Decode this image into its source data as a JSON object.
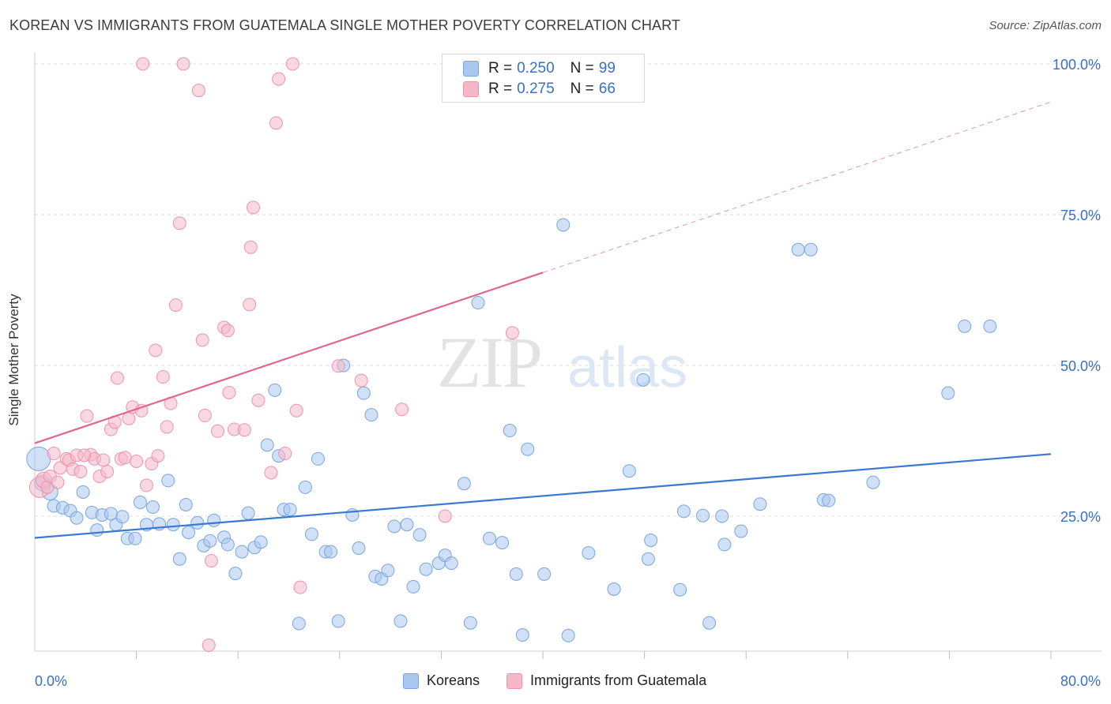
{
  "header": {
    "title": "KOREAN VS IMMIGRANTS FROM GUATEMALA SINGLE MOTHER POVERTY CORRELATION CHART",
    "source": "Source: ZipAtlas.com"
  },
  "watermark": {
    "part1": "ZIP",
    "part2": "atlas"
  },
  "legend": {
    "koreans": {
      "r_label": "R =",
      "r_value": "0.250",
      "n_label": "N =",
      "n_value": "99"
    },
    "guatemala": {
      "r_label": "R =",
      "r_value": "0.275",
      "n_label": "N =",
      "n_value": "66"
    }
  },
  "bottom_legend": {
    "koreans": "Koreans",
    "guatemala": "Immigrants from Guatemala"
  },
  "colors": {
    "blue_fill": "#a9c6ee",
    "blue_stroke": "#7aa5df",
    "blue_line": "#3a78d1",
    "pink_fill": "#f5b8c9",
    "pink_stroke": "#ee93ae",
    "pink_line": "#e0668f",
    "tick_label": "#3a6fc4",
    "grid": "#dddddd"
  },
  "chart_data": {
    "type": "scatter",
    "title": "KOREAN VS IMMIGRANTS FROM GUATEMALA SINGLE MOTHER POVERTY CORRELATION CHART",
    "xlabel": "",
    "ylabel": "Single Mother Poverty",
    "xlim": [
      0,
      80
    ],
    "ylim": [
      0,
      100
    ],
    "x_tick_labels": [
      "0.0%",
      "80.0%"
    ],
    "y_tick_labels": [
      "25.0%",
      "50.0%",
      "75.0%",
      "100.0%"
    ],
    "y_ticks": [
      25,
      50,
      75,
      100
    ],
    "grid": true,
    "legend_position": "top-center",
    "series": [
      {
        "name": "Koreans",
        "color": "#a9c6ee",
        "r": 0.25,
        "n": 99,
        "trend": {
          "x": [
            0,
            80
          ],
          "y": [
            21.4,
            35.3
          ],
          "style": "solid"
        },
        "points": [
          [
            0.3,
            34.5,
            14
          ],
          [
            1.2,
            29.0,
            9
          ],
          [
            1.5,
            26.7,
            7
          ],
          [
            2.2,
            26.4,
            7
          ],
          [
            2.8,
            25.9,
            7
          ],
          [
            3.3,
            24.7,
            7
          ],
          [
            3.8,
            29.0,
            7
          ],
          [
            4.5,
            25.6,
            7
          ],
          [
            4.9,
            22.7,
            7
          ],
          [
            5.3,
            25.2,
            7
          ],
          [
            6.0,
            25.4,
            7
          ],
          [
            6.4,
            23.6,
            7
          ],
          [
            6.9,
            24.9,
            7
          ],
          [
            7.3,
            21.3,
            7
          ],
          [
            7.9,
            21.3,
            7
          ],
          [
            8.3,
            27.3,
            7
          ],
          [
            8.8,
            23.6,
            7
          ],
          [
            9.3,
            26.5,
            7
          ],
          [
            9.8,
            23.7,
            7
          ],
          [
            10.5,
            30.9,
            7
          ],
          [
            10.9,
            23.6,
            7
          ],
          [
            11.4,
            17.9,
            7
          ],
          [
            11.9,
            26.9,
            7
          ],
          [
            12.1,
            22.3,
            7
          ],
          [
            12.8,
            23.9,
            7
          ],
          [
            13.3,
            20.1,
            7
          ],
          [
            13.8,
            20.9,
            7
          ],
          [
            14.1,
            24.3,
            7
          ],
          [
            14.9,
            21.5,
            7
          ],
          [
            15.2,
            20.3,
            7
          ],
          [
            15.8,
            15.5,
            7
          ],
          [
            16.3,
            19.1,
            7
          ],
          [
            16.8,
            25.5,
            7
          ],
          [
            17.3,
            19.8,
            7
          ],
          [
            17.8,
            20.7,
            7
          ],
          [
            18.3,
            36.8,
            7
          ],
          [
            18.9,
            45.9,
            7
          ],
          [
            19.2,
            35.0,
            7
          ],
          [
            19.6,
            26.1,
            7
          ],
          [
            20.1,
            26.1,
            7
          ],
          [
            20.8,
            7.2,
            7
          ],
          [
            21.3,
            29.8,
            7
          ],
          [
            21.8,
            22.0,
            7
          ],
          [
            22.3,
            34.5,
            7
          ],
          [
            22.9,
            19.1,
            7
          ],
          [
            23.3,
            19.1,
            7
          ],
          [
            23.9,
            7.6,
            7
          ],
          [
            24.3,
            50.0,
            7
          ],
          [
            25.0,
            25.2,
            7
          ],
          [
            25.5,
            19.7,
            7
          ],
          [
            25.9,
            45.4,
            7
          ],
          [
            26.5,
            41.8,
            7
          ],
          [
            26.8,
            15.0,
            7
          ],
          [
            27.3,
            14.6,
            7
          ],
          [
            27.8,
            16.0,
            7
          ],
          [
            28.3,
            23.3,
            7
          ],
          [
            28.8,
            7.6,
            7
          ],
          [
            29.3,
            23.6,
            7
          ],
          [
            29.8,
            13.3,
            7
          ],
          [
            30.3,
            21.9,
            7
          ],
          [
            30.8,
            16.2,
            7
          ],
          [
            31.8,
            17.2,
            7
          ],
          [
            32.3,
            18.5,
            7
          ],
          [
            32.8,
            17.2,
            7
          ],
          [
            33.8,
            30.4,
            7
          ],
          [
            34.3,
            7.3,
            7
          ],
          [
            34.9,
            60.4,
            7
          ],
          [
            35.8,
            21.3,
            7
          ],
          [
            36.8,
            20.6,
            7
          ],
          [
            37.4,
            39.2,
            7
          ],
          [
            37.9,
            15.4,
            7
          ],
          [
            38.4,
            5.3,
            7
          ],
          [
            38.8,
            36.1,
            7
          ],
          [
            40.1,
            15.4,
            7
          ],
          [
            41.6,
            73.3,
            7
          ],
          [
            42.0,
            5.2,
            7
          ],
          [
            43.6,
            18.9,
            7
          ],
          [
            45.6,
            12.9,
            7
          ],
          [
            46.8,
            32.5,
            7
          ],
          [
            47.9,
            47.6,
            7
          ],
          [
            48.3,
            17.9,
            7
          ],
          [
            48.5,
            21.0,
            7
          ],
          [
            50.8,
            12.8,
            7
          ],
          [
            51.1,
            25.8,
            7
          ],
          [
            52.6,
            25.1,
            7
          ],
          [
            53.1,
            7.3,
            7
          ],
          [
            54.1,
            25.0,
            7
          ],
          [
            54.3,
            20.3,
            7
          ],
          [
            55.6,
            22.5,
            7
          ],
          [
            57.1,
            27.0,
            7
          ],
          [
            60.1,
            69.2,
            7
          ],
          [
            61.1,
            69.2,
            7
          ],
          [
            62.1,
            27.7,
            7
          ],
          [
            62.5,
            27.6,
            7
          ],
          [
            66.0,
            30.6,
            7
          ],
          [
            71.9,
            45.4,
            7
          ],
          [
            73.2,
            56.5,
            7
          ],
          [
            75.2,
            56.5,
            7
          ],
          [
            0.6,
            30.5,
            9
          ]
        ]
      },
      {
        "name": "Immigrants from Guatemala",
        "color": "#f5b8c9",
        "r": 0.275,
        "n": 66,
        "trend": {
          "x": [
            0,
            40
          ],
          "y": [
            37.1,
            65.4
          ],
          "style": "solid",
          "extended_to": [
            80,
            93.7
          ],
          "extended_style": "dashed"
        },
        "points": [
          [
            0.4,
            29.8,
            12
          ],
          [
            0.7,
            31.0,
            9
          ],
          [
            1.0,
            29.8,
            7
          ],
          [
            1.2,
            31.6,
            7
          ],
          [
            1.5,
            35.4,
            7
          ],
          [
            1.8,
            30.6,
            7
          ],
          [
            2.0,
            33.0,
            7
          ],
          [
            2.5,
            34.5,
            7
          ],
          [
            2.7,
            34.3,
            7
          ],
          [
            3.0,
            32.8,
            7
          ],
          [
            3.3,
            35.1,
            7
          ],
          [
            3.6,
            32.4,
            7
          ],
          [
            4.1,
            41.6,
            7
          ],
          [
            4.4,
            35.2,
            7
          ],
          [
            4.7,
            34.5,
            7
          ],
          [
            5.1,
            31.6,
            7
          ],
          [
            5.4,
            34.3,
            7
          ],
          [
            5.7,
            32.4,
            7
          ],
          [
            6.0,
            39.4,
            7
          ],
          [
            6.3,
            40.6,
            7
          ],
          [
            6.5,
            47.9,
            7
          ],
          [
            6.8,
            34.5,
            7
          ],
          [
            7.1,
            34.7,
            7
          ],
          [
            7.4,
            41.2,
            7
          ],
          [
            7.7,
            43.1,
            7
          ],
          [
            8.0,
            34.1,
            7
          ],
          [
            8.4,
            42.5,
            7
          ],
          [
            8.8,
            30.1,
            7
          ],
          [
            9.2,
            33.7,
            7
          ],
          [
            9.5,
            52.5,
            7
          ],
          [
            9.7,
            35.0,
            7
          ],
          [
            10.1,
            48.1,
            7
          ],
          [
            10.4,
            39.8,
            7
          ],
          [
            10.7,
            43.7,
            7
          ],
          [
            11.1,
            60.0,
            7
          ],
          [
            11.4,
            73.6,
            7
          ],
          [
            11.7,
            100.0,
            7
          ],
          [
            12.9,
            95.6,
            7
          ],
          [
            13.2,
            54.2,
            7
          ],
          [
            13.4,
            41.7,
            7
          ],
          [
            13.7,
            3.6,
            7
          ],
          [
            13.9,
            17.6,
            7
          ],
          [
            14.4,
            39.1,
            7
          ],
          [
            14.9,
            56.3,
            7
          ],
          [
            15.2,
            55.8,
            7
          ],
          [
            15.3,
            45.5,
            7
          ],
          [
            15.7,
            39.4,
            7
          ],
          [
            16.5,
            39.3,
            7
          ],
          [
            16.9,
            60.1,
            7
          ],
          [
            17.0,
            69.6,
            7
          ],
          [
            17.2,
            76.2,
            7
          ],
          [
            17.6,
            44.2,
            7
          ],
          [
            18.6,
            32.2,
            7
          ],
          [
            19.0,
            90.2,
            7
          ],
          [
            19.2,
            97.5,
            7
          ],
          [
            19.7,
            35.4,
            7
          ],
          [
            20.3,
            100.0,
            7
          ],
          [
            20.6,
            42.5,
            7
          ],
          [
            20.9,
            13.2,
            7
          ],
          [
            23.9,
            49.9,
            7
          ],
          [
            25.7,
            47.5,
            7
          ],
          [
            28.9,
            42.7,
            7
          ],
          [
            32.3,
            25.0,
            7
          ],
          [
            37.6,
            55.4,
            7
          ],
          [
            8.5,
            100.0,
            7
          ],
          [
            3.9,
            35.1,
            7
          ]
        ]
      }
    ]
  }
}
